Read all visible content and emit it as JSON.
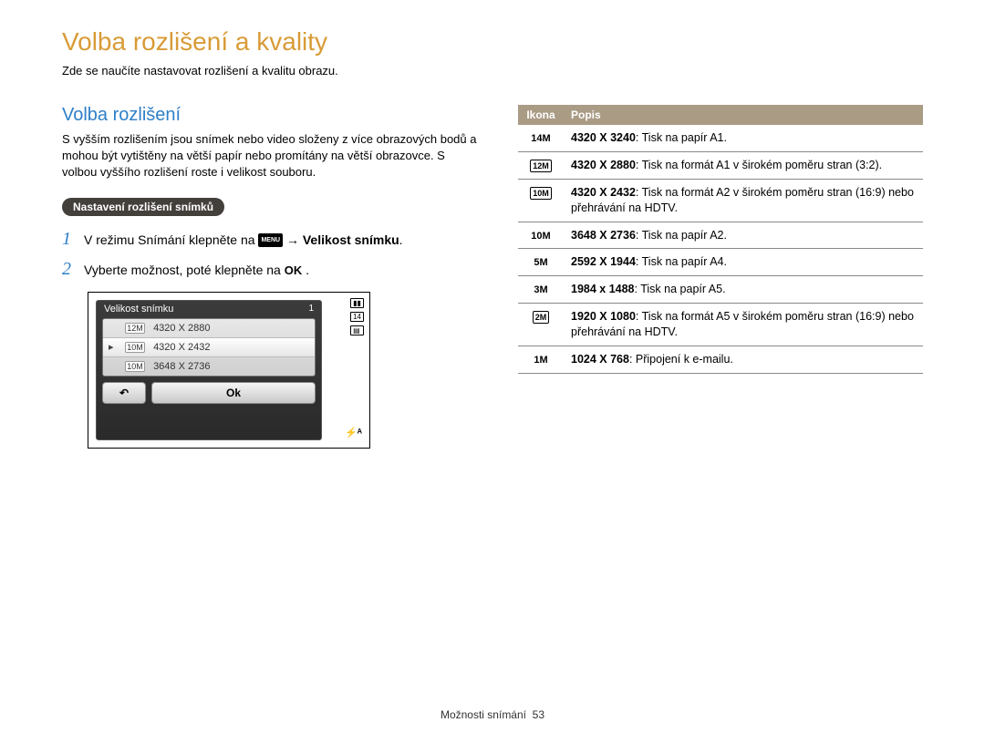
{
  "page": {
    "title": "Volba rozlišení a kvality",
    "subtitle": "Zde se naučíte nastavovat rozlišení a kvalitu obrazu.",
    "footer_section": "Možnosti snímání",
    "footer_page": "53"
  },
  "left": {
    "section_title": "Volba rozlišení",
    "body": "S vyšším rozlišením jsou snímek nebo video složeny z více obrazových bodů a mohou být vytištěny na větší papír nebo promítány na větší obrazovce. S volbou vyššího rozlišení roste i velikost souboru.",
    "pill": "Nastavení rozlišení snímků",
    "step1_num": "1",
    "step1_pre": "V režimu Snímání klepněte na ",
    "step1_menu": "MENU",
    "step1_arrow": " → ",
    "step1_bold": "Velikost snímku",
    "step1_post": ".",
    "step2_num": "2",
    "step2_pre": "Vyberte možnost, poté klepněte na ",
    "step2_ok": "OK",
    "step2_post": " .",
    "camera": {
      "header": "Velikost snímku",
      "header_count": "1",
      "row1_badge": "12M",
      "row1_text": "4320 X 2880",
      "row2_badge": "10M",
      "row2_text": "4320 X 2432",
      "row3_badge": "10M",
      "row3_text": "3648 X 2736",
      "btn_back": "↶",
      "btn_ok": "Ok",
      "flash": "⚡ᴬ"
    }
  },
  "right": {
    "th_icon": "Ikona",
    "th_desc": "Popis",
    "rows": {
      "r0": {
        "icon": "14M",
        "bold": "4320 X 3240",
        "rest": ": Tisk na papír A1."
      },
      "r1": {
        "icon": "12M",
        "bold": "4320 X 2880",
        "rest": ": Tisk na formát A1 v širokém poměru stran (3:2)."
      },
      "r2": {
        "icon": "10M",
        "bold": "4320 X 2432",
        "rest": ": Tisk na formát A2 v širokém poměru stran (16:9) nebo přehrávání na HDTV."
      },
      "r3": {
        "icon": "10M",
        "bold": "3648 X 2736",
        "rest": ": Tisk na papír A2."
      },
      "r4": {
        "icon": "5M",
        "bold": "2592 X 1944",
        "rest": ": Tisk na papír A4."
      },
      "r5": {
        "icon": "3M",
        "bold": "1984 x 1488",
        "rest": ": Tisk na papír A5."
      },
      "r6": {
        "icon": "2M",
        "bold": "1920 X 1080",
        "rest": ": Tisk na formát A5 v širokém poměru stran (16:9) nebo přehrávání na HDTV."
      },
      "r7": {
        "icon": "1M",
        "bold": "1024 X 768",
        "rest": ": Připojení k e-mailu."
      }
    }
  }
}
